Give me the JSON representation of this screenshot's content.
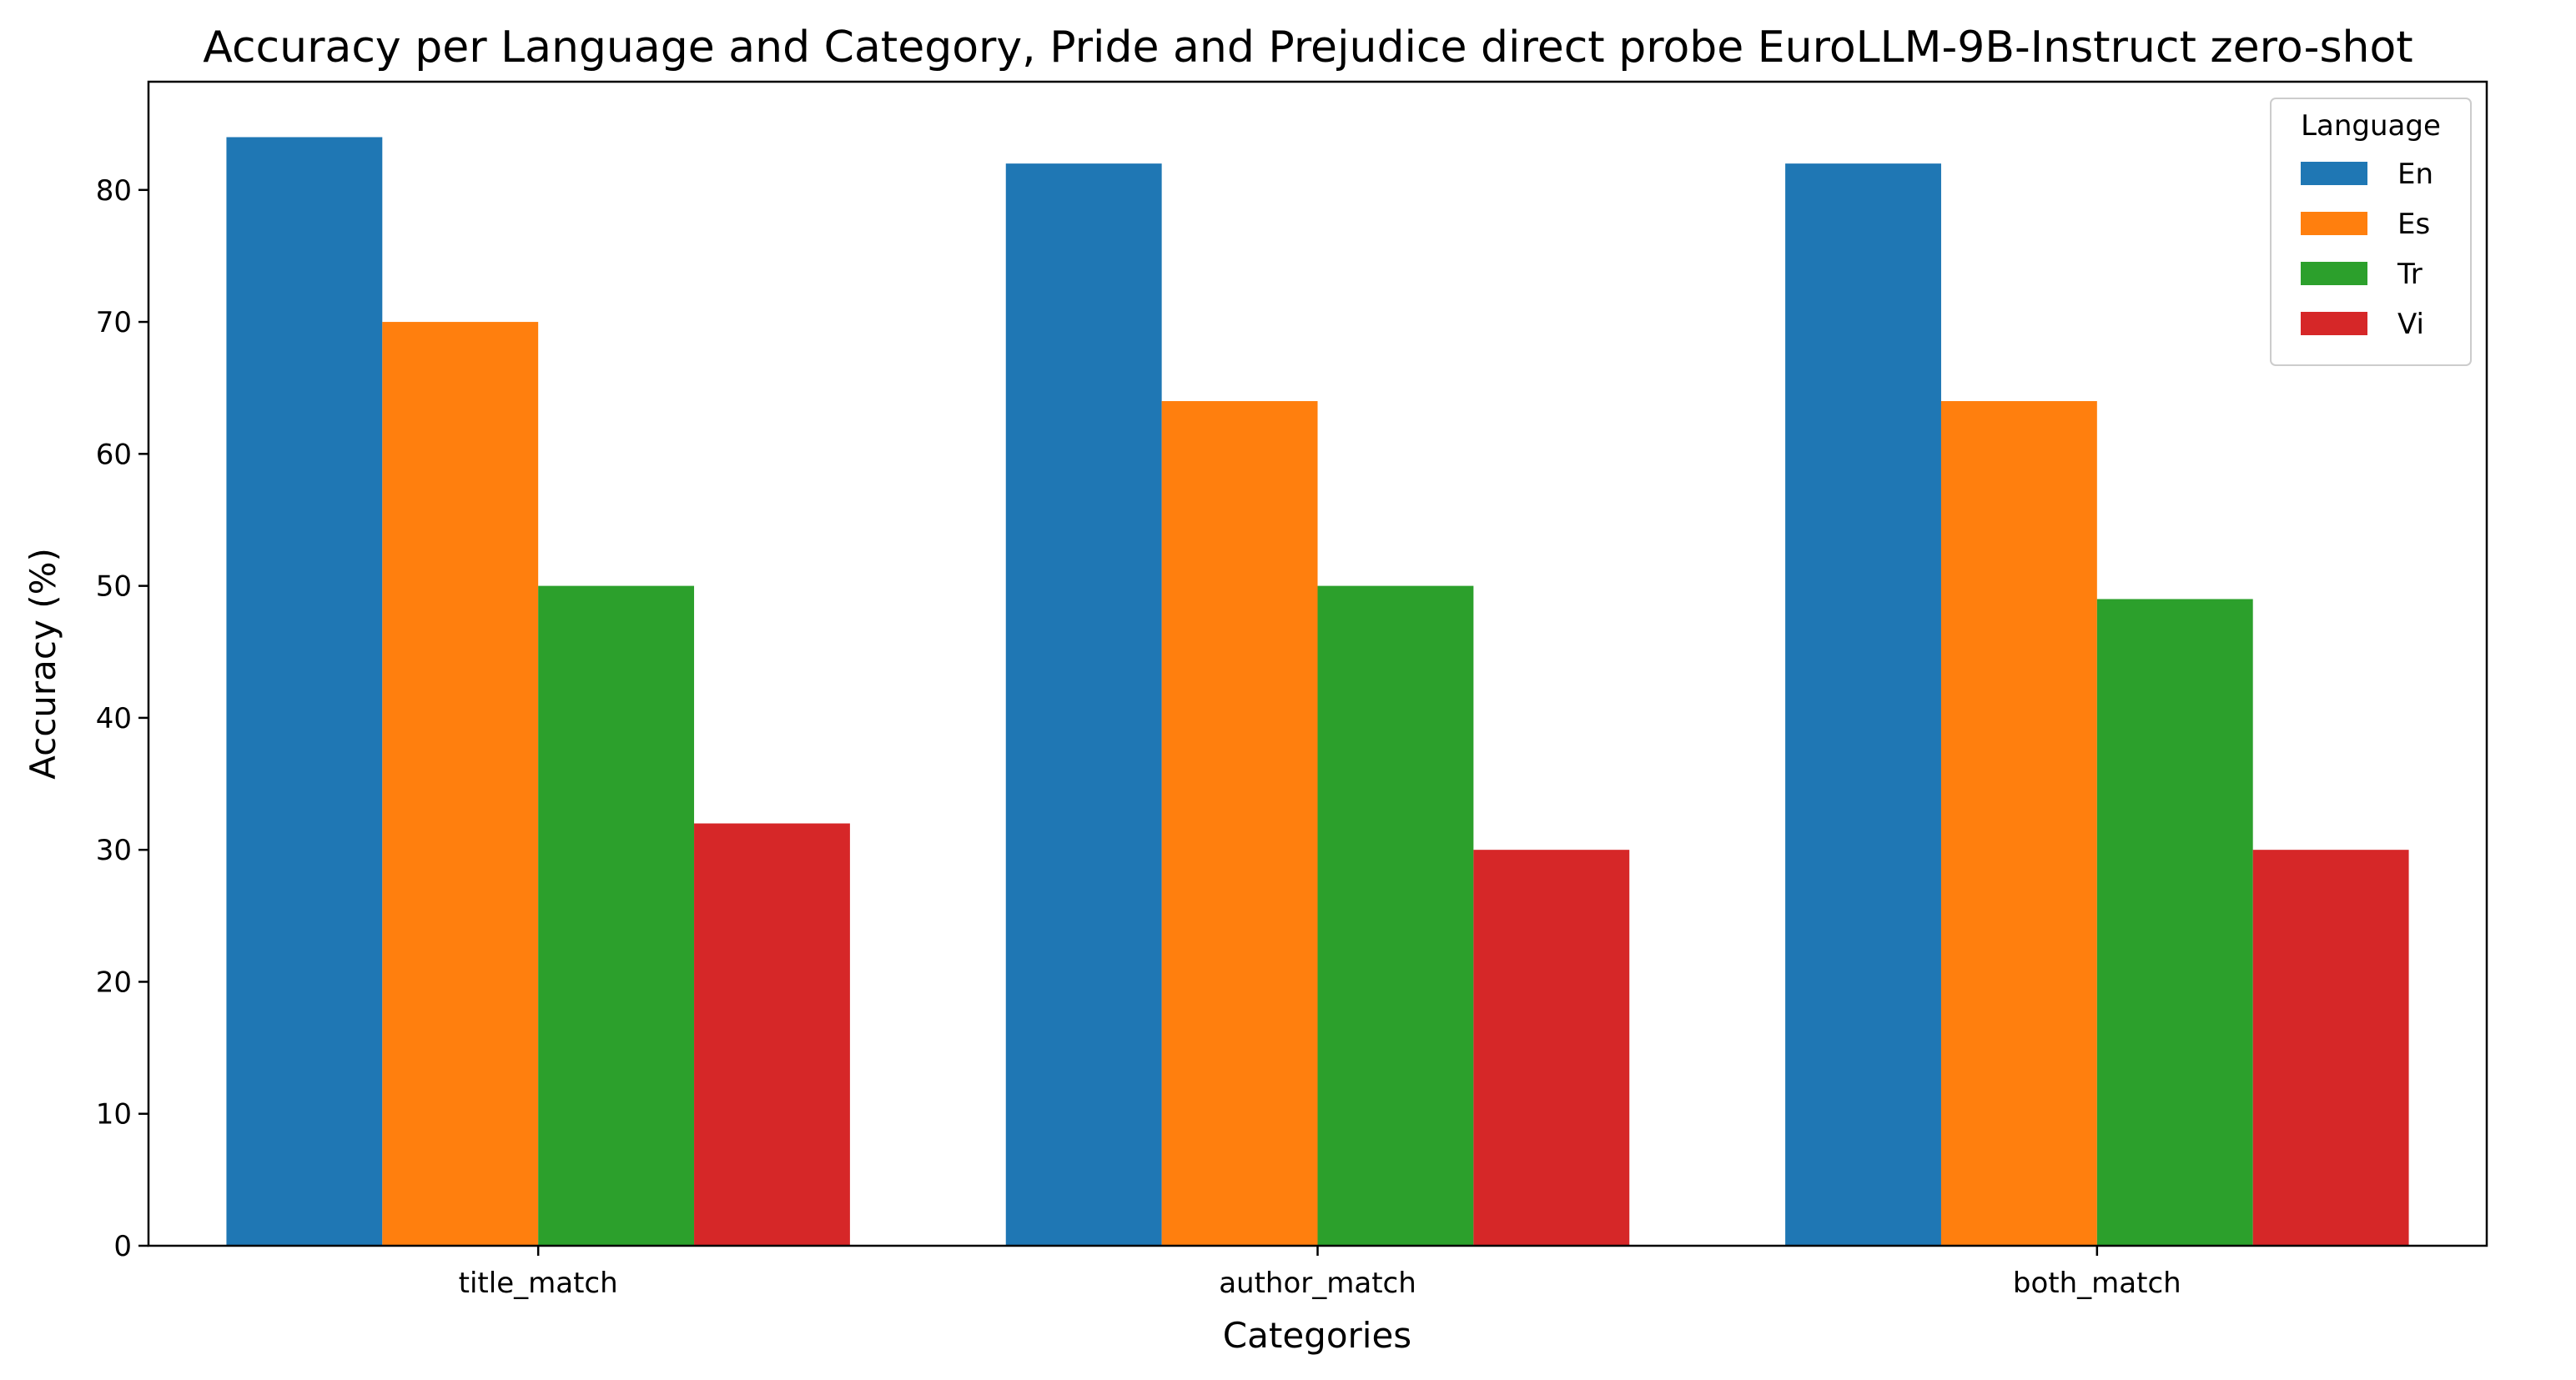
{
  "chart_data": {
    "type": "bar",
    "title": "Accuracy per Language and Category, Pride and Prejudice direct probe EuroLLM-9B-Instruct zero-shot",
    "xlabel": "Categories",
    "ylabel": "Accuracy (%)",
    "categories": [
      "title_match",
      "author_match",
      "both_match"
    ],
    "series": [
      {
        "name": "En",
        "color": "#1f77b4",
        "values": [
          84,
          82,
          82
        ]
      },
      {
        "name": "Es",
        "color": "#ff7f0e",
        "values": [
          70,
          64,
          64
        ]
      },
      {
        "name": "Tr",
        "color": "#2ca02c",
        "values": [
          50,
          50,
          49
        ]
      },
      {
        "name": "Vi",
        "color": "#d62728",
        "values": [
          32,
          30,
          30
        ]
      }
    ],
    "ylim": [
      0,
      88.2
    ],
    "yticks": [
      0,
      10,
      20,
      30,
      40,
      50,
      60,
      70,
      80
    ],
    "grid": false,
    "legend": {
      "title": "Language",
      "placement": "top-right"
    }
  }
}
